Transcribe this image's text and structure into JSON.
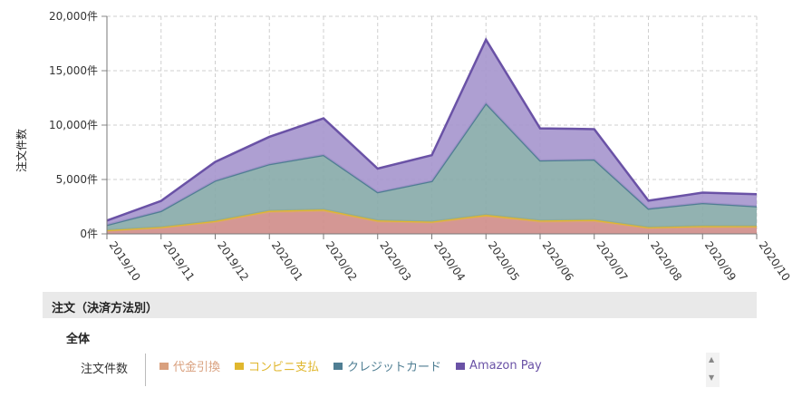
{
  "chart_data": {
    "type": "area",
    "stacked": true,
    "ylabel": "注文件数",
    "categories": [
      "2019/10",
      "2019/11",
      "2019/12",
      "2020/01",
      "2020/02",
      "2020/03",
      "2020/04",
      "2020/05",
      "2020/06",
      "2020/07",
      "2020/08",
      "2020/09",
      "2020/10"
    ],
    "y_tick_labels": [
      "0件",
      "5,000件",
      "10,000件",
      "15,000件",
      "20,000件"
    ],
    "ylim": [
      0,
      20000
    ],
    "grid": true,
    "series": [
      {
        "name": "代金引換",
        "color": "#cf8c88",
        "line_color": "#d9a07e",
        "values": [
          300,
          560,
          1100,
          2020,
          2120,
          1150,
          1050,
          1620,
          1130,
          1180,
          540,
          650,
          640
        ]
      },
      {
        "name": "コンビニ支払",
        "color": "#e3b92c",
        "line_color": "#e0b72e",
        "values": [
          40,
          60,
          90,
          110,
          120,
          90,
          80,
          130,
          100,
          110,
          60,
          70,
          70
        ]
      },
      {
        "name": "クレジットカード",
        "color": "#86aaa8",
        "line_color": "#4f7e93",
        "values": [
          480,
          1480,
          3700,
          4280,
          5010,
          2590,
          3720,
          10250,
          5520,
          5540,
          1720,
          2110,
          1820
        ]
      },
      {
        "name": "Amazon Pay",
        "color": "#a595cd",
        "line_color": "#6a52a6",
        "values": [
          400,
          930,
          1730,
          2510,
          3370,
          2170,
          2380,
          5850,
          2950,
          2800,
          730,
          960,
          1120
        ]
      }
    ]
  },
  "section": {
    "title": "注文（決済方法別）"
  },
  "group": {
    "title": "全体"
  },
  "metric": {
    "label": "注文件数"
  }
}
